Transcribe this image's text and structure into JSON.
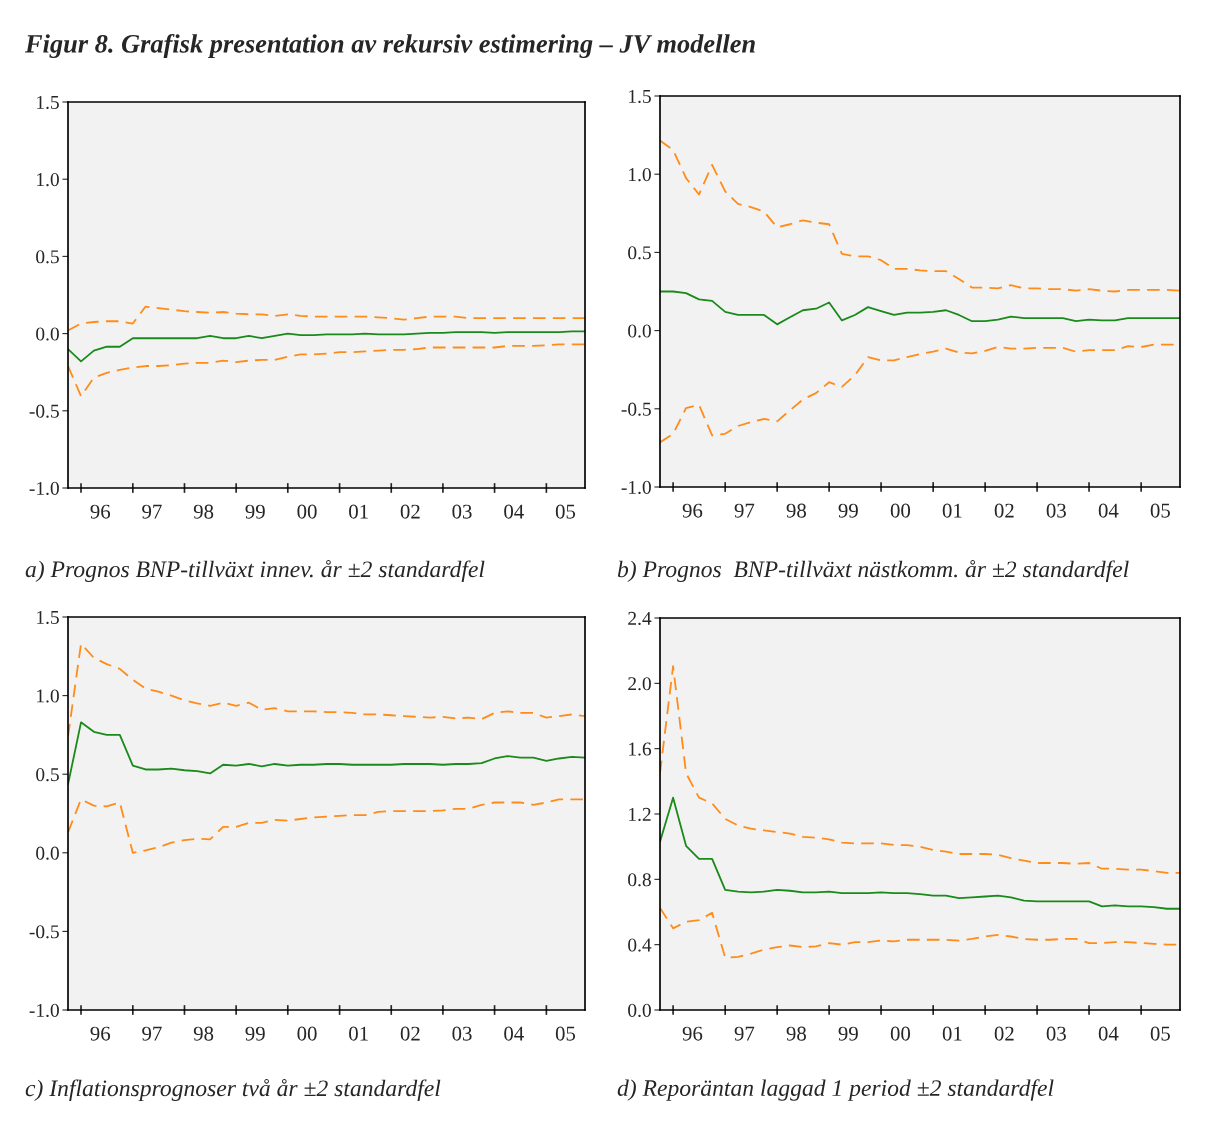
{
  "chart_data": [
    {
      "type": "line",
      "title": "Figur 8. Grafisk presentation av rekursiv estimering – JV modellen",
      "annotations": [
        "a) Prognos BNP-tillväxt innev. år ±2 standardfel"
      ],
      "x": [
        "1995-10",
        "1996-01",
        "1996-04",
        "1996-07",
        "1996-10",
        "1997-01",
        "1997-04",
        "1997-07",
        "1997-10",
        "1998-01",
        "1998-04",
        "1998-07",
        "1998-10",
        "1999-01",
        "1999-04",
        "1999-07",
        "1999-10",
        "2000-01",
        "2000-04",
        "2000-07",
        "2000-10",
        "2001-01",
        "2001-04",
        "2001-07",
        "2001-10",
        "2002-01",
        "2002-04",
        "2002-07",
        "2002-10",
        "2003-01",
        "2003-04",
        "2003-07",
        "2003-10",
        "2004-01",
        "2004-04",
        "2004-07",
        "2004-10",
        "2005-01",
        "2005-04",
        "2005-07",
        "2005-10"
      ],
      "series": [
        {
          "color": "#ff8c1a",
          "line_style": "dashed",
          "values": [
            0.02,
            0.065,
            0.075,
            0.08,
            0.08,
            0.065,
            0.175,
            0.165,
            0.155,
            0.145,
            0.14,
            0.135,
            0.14,
            0.13,
            0.125,
            0.125,
            0.115,
            0.125,
            0.115,
            0.11,
            0.11,
            0.11,
            0.11,
            0.11,
            0.105,
            0.1,
            0.09,
            0.1,
            0.11,
            0.11,
            0.11,
            0.1,
            0.1,
            0.1,
            0.1,
            0.1,
            0.1,
            0.1,
            0.1,
            0.1,
            0.1
          ]
        },
        {
          "color": "#1a8a1a",
          "line_style": "solid",
          "values": [
            -0.1,
            -0.18,
            -0.11,
            -0.085,
            -0.085,
            -0.03,
            -0.03,
            -0.03,
            -0.03,
            -0.03,
            -0.03,
            -0.015,
            -0.03,
            -0.03,
            -0.015,
            -0.03,
            -0.015,
            0.0,
            -0.01,
            -0.01,
            -0.005,
            -0.005,
            -0.005,
            0.0,
            -0.005,
            -0.005,
            -0.005,
            0.0,
            0.005,
            0.005,
            0.01,
            0.01,
            0.01,
            0.005,
            0.01,
            0.01,
            0.01,
            0.01,
            0.01,
            0.015,
            0.015
          ]
        },
        {
          "color": "#ff8c1a",
          "line_style": "dashed",
          "values": [
            -0.21,
            -0.405,
            -0.285,
            -0.255,
            -0.235,
            -0.22,
            -0.21,
            -0.21,
            -0.205,
            -0.195,
            -0.19,
            -0.19,
            -0.175,
            -0.185,
            -0.175,
            -0.17,
            -0.17,
            -0.15,
            -0.135,
            -0.135,
            -0.13,
            -0.12,
            -0.12,
            -0.115,
            -0.11,
            -0.105,
            -0.105,
            -0.1,
            -0.09,
            -0.09,
            -0.09,
            -0.09,
            -0.09,
            -0.09,
            -0.08,
            -0.08,
            -0.08,
            -0.075,
            -0.07,
            -0.07,
            -0.07
          ]
        }
      ],
      "xlim": [
        "1995-10",
        "2005-10"
      ],
      "xticks": [
        {
          "value": "1996-01",
          "label": null
        },
        {
          "value": "1997-01",
          "label": null
        },
        {
          "value": "1998-01",
          "label": null
        },
        {
          "value": "1999-01",
          "label": null
        },
        {
          "value": "2000-01",
          "label": null
        },
        {
          "value": "2001-01",
          "label": null
        },
        {
          "value": "2002-01",
          "label": null
        },
        {
          "value": "2003-01",
          "label": null
        },
        {
          "value": "2004-01",
          "label": null
        },
        {
          "value": "2005-01",
          "label": null
        },
        {
          "value": "1996-05-16",
          "label": "96"
        },
        {
          "value": "1997-05-16",
          "label": "97"
        },
        {
          "value": "1998-05-16",
          "label": "98"
        },
        {
          "value": "1999-05-16",
          "label": "99"
        },
        {
          "value": "2000-05-16",
          "label": "00"
        },
        {
          "value": "2001-05-16",
          "label": "01"
        },
        {
          "value": "2002-05-16",
          "label": "02"
        },
        {
          "value": "2003-05-16",
          "label": "03"
        },
        {
          "value": "2004-05-16",
          "label": "04"
        },
        {
          "value": "2005-05-16",
          "label": "05"
        }
      ],
      "ylim": [
        -1.0,
        1.5
      ],
      "yticks": [
        {
          "value": -1.0,
          "label": "-1.0"
        },
        {
          "value": -0.5,
          "label": "-0.5"
        },
        {
          "value": 0.0,
          "label": "0.0"
        },
        {
          "value": 0.5,
          "label": "0.5"
        },
        {
          "value": 1.0,
          "label": "1.0"
        },
        {
          "value": 1.5,
          "label": "1.5"
        }
      ],
      "grid": false
    },
    {
      "type": "line",
      "annotations": [
        "b) Prognos  BNP-tillväxt nästkomm. år ±2 standardfel"
      ],
      "x": [
        "1995-10",
        "1996-01",
        "1996-04",
        "1996-07",
        "1996-10",
        "1997-01",
        "1997-04",
        "1997-07",
        "1997-10",
        "1998-01",
        "1998-04",
        "1998-07",
        "1998-10",
        "1999-01",
        "1999-04",
        "1999-07",
        "1999-10",
        "2000-01",
        "2000-04",
        "2000-07",
        "2000-10",
        "2001-01",
        "2001-04",
        "2001-07",
        "2001-10",
        "2002-01",
        "2002-04",
        "2002-07",
        "2002-10",
        "2003-01",
        "2003-04",
        "2003-07",
        "2003-10",
        "2004-01",
        "2004-04",
        "2004-07",
        "2004-10",
        "2005-01",
        "2005-04",
        "2005-07",
        "2005-10"
      ],
      "series": [
        {
          "color": "#ff8c1a",
          "line_style": "dashed",
          "values": [
            1.215,
            1.155,
            0.975,
            0.87,
            1.06,
            0.89,
            0.81,
            0.79,
            0.76,
            0.66,
            0.68,
            0.705,
            0.69,
            0.68,
            0.49,
            0.475,
            0.475,
            0.45,
            0.395,
            0.395,
            0.385,
            0.38,
            0.38,
            0.33,
            0.275,
            0.275,
            0.27,
            0.29,
            0.27,
            0.27,
            0.265,
            0.265,
            0.255,
            0.265,
            0.255,
            0.25,
            0.26,
            0.26,
            0.26,
            0.26,
            0.255
          ]
        },
        {
          "color": "#1a8a1a",
          "line_style": "solid",
          "values": [
            0.25,
            0.25,
            0.24,
            0.2,
            0.19,
            0.12,
            0.1,
            0.1,
            0.1,
            0.04,
            0.085,
            0.13,
            0.14,
            0.18,
            0.065,
            0.1,
            0.15,
            0.125,
            0.1,
            0.115,
            0.115,
            0.12,
            0.13,
            0.1,
            0.06,
            0.06,
            0.07,
            0.09,
            0.08,
            0.08,
            0.08,
            0.08,
            0.06,
            0.07,
            0.065,
            0.065,
            0.08,
            0.08,
            0.08,
            0.08,
            0.08
          ]
        },
        {
          "color": "#ff8c1a",
          "line_style": "dashed",
          "values": [
            -0.715,
            -0.66,
            -0.495,
            -0.475,
            -0.67,
            -0.66,
            -0.61,
            -0.585,
            -0.565,
            -0.58,
            -0.51,
            -0.44,
            -0.4,
            -0.33,
            -0.36,
            -0.285,
            -0.17,
            -0.19,
            -0.19,
            -0.17,
            -0.15,
            -0.135,
            -0.115,
            -0.14,
            -0.145,
            -0.13,
            -0.105,
            -0.115,
            -0.115,
            -0.11,
            -0.11,
            -0.11,
            -0.135,
            -0.125,
            -0.125,
            -0.125,
            -0.1,
            -0.105,
            -0.09,
            -0.09,
            -0.09
          ]
        }
      ],
      "xlim": [
        "1995-10",
        "2005-10"
      ],
      "xticks": [
        {
          "value": "1996-01",
          "label": null
        },
        {
          "value": "1997-01",
          "label": null
        },
        {
          "value": "1998-01",
          "label": null
        },
        {
          "value": "1999-01",
          "label": null
        },
        {
          "value": "2000-01",
          "label": null
        },
        {
          "value": "2001-01",
          "label": null
        },
        {
          "value": "2002-01",
          "label": null
        },
        {
          "value": "2003-01",
          "label": null
        },
        {
          "value": "2004-01",
          "label": null
        },
        {
          "value": "2005-01",
          "label": null
        },
        {
          "value": "1996-05-16",
          "label": "96"
        },
        {
          "value": "1997-05-16",
          "label": "97"
        },
        {
          "value": "1998-05-16",
          "label": "98"
        },
        {
          "value": "1999-05-16",
          "label": "99"
        },
        {
          "value": "2000-05-16",
          "label": "00"
        },
        {
          "value": "2001-05-16",
          "label": "01"
        },
        {
          "value": "2002-05-16",
          "label": "02"
        },
        {
          "value": "2003-05-16",
          "label": "03"
        },
        {
          "value": "2004-05-16",
          "label": "04"
        },
        {
          "value": "2005-05-16",
          "label": "05"
        }
      ],
      "ylim": [
        -1.0,
        1.5
      ],
      "yticks": [
        {
          "value": -1.0,
          "label": "-1.0"
        },
        {
          "value": -0.5,
          "label": "-0.5"
        },
        {
          "value": 0.0,
          "label": "0.0"
        },
        {
          "value": 0.5,
          "label": "0.5"
        },
        {
          "value": 1.0,
          "label": "1.0"
        },
        {
          "value": 1.5,
          "label": "1.5"
        }
      ],
      "grid": false
    },
    {
      "type": "line",
      "annotations": [
        "c) Inflationsprognoser två år ±2 standardfel"
      ],
      "x": [
        "1995-10",
        "1996-01",
        "1996-04",
        "1996-07",
        "1996-10",
        "1997-01",
        "1997-04",
        "1997-07",
        "1997-10",
        "1998-01",
        "1998-04",
        "1998-07",
        "1998-10",
        "1999-01",
        "1999-04",
        "1999-07",
        "1999-10",
        "2000-01",
        "2000-04",
        "2000-07",
        "2000-10",
        "2001-01",
        "2001-04",
        "2001-07",
        "2001-10",
        "2002-01",
        "2002-04",
        "2002-07",
        "2002-10",
        "2003-01",
        "2003-04",
        "2003-07",
        "2003-10",
        "2004-01",
        "2004-04",
        "2004-07",
        "2004-10",
        "2005-01",
        "2005-04",
        "2005-07",
        "2005-10"
      ],
      "series": [
        {
          "color": "#ff8c1a",
          "line_style": "dashed",
          "values": [
            0.74,
            1.33,
            1.24,
            1.2,
            1.17,
            1.1,
            1.045,
            1.025,
            1.0,
            0.97,
            0.95,
            0.935,
            0.955,
            0.935,
            0.955,
            0.91,
            0.92,
            0.9,
            0.9,
            0.9,
            0.895,
            0.895,
            0.89,
            0.88,
            0.88,
            0.875,
            0.87,
            0.865,
            0.86,
            0.865,
            0.855,
            0.86,
            0.85,
            0.89,
            0.9,
            0.89,
            0.89,
            0.86,
            0.87,
            0.88,
            0.87
          ]
        },
        {
          "color": "#1a8a1a",
          "line_style": "solid",
          "values": [
            0.435,
            0.83,
            0.77,
            0.75,
            0.75,
            0.555,
            0.53,
            0.53,
            0.535,
            0.525,
            0.52,
            0.505,
            0.56,
            0.555,
            0.565,
            0.55,
            0.565,
            0.555,
            0.56,
            0.56,
            0.565,
            0.565,
            0.56,
            0.56,
            0.56,
            0.56,
            0.565,
            0.565,
            0.565,
            0.56,
            0.565,
            0.565,
            0.57,
            0.6,
            0.615,
            0.605,
            0.605,
            0.585,
            0.6,
            0.61,
            0.605
          ]
        },
        {
          "color": "#ff8c1a",
          "line_style": "dashed",
          "values": [
            0.13,
            0.34,
            0.3,
            0.295,
            0.32,
            0.0,
            0.015,
            0.035,
            0.065,
            0.08,
            0.09,
            0.085,
            0.165,
            0.165,
            0.19,
            0.19,
            0.21,
            0.205,
            0.215,
            0.225,
            0.23,
            0.235,
            0.24,
            0.24,
            0.26,
            0.265,
            0.265,
            0.265,
            0.265,
            0.27,
            0.28,
            0.28,
            0.305,
            0.32,
            0.32,
            0.32,
            0.305,
            0.32,
            0.34,
            0.34,
            0.34
          ]
        }
      ],
      "xlim": [
        "1995-10",
        "2005-10"
      ],
      "xticks": [
        {
          "value": "1996-01",
          "label": null
        },
        {
          "value": "1997-01",
          "label": null
        },
        {
          "value": "1998-01",
          "label": null
        },
        {
          "value": "1999-01",
          "label": null
        },
        {
          "value": "2000-01",
          "label": null
        },
        {
          "value": "2001-01",
          "label": null
        },
        {
          "value": "2002-01",
          "label": null
        },
        {
          "value": "2003-01",
          "label": null
        },
        {
          "value": "2004-01",
          "label": null
        },
        {
          "value": "2005-01",
          "label": null
        },
        {
          "value": "1996-05-16",
          "label": "96"
        },
        {
          "value": "1997-05-16",
          "label": "97"
        },
        {
          "value": "1998-05-16",
          "label": "98"
        },
        {
          "value": "1999-05-16",
          "label": "99"
        },
        {
          "value": "2000-05-16",
          "label": "00"
        },
        {
          "value": "2001-05-16",
          "label": "01"
        },
        {
          "value": "2002-05-16",
          "label": "02"
        },
        {
          "value": "2003-05-16",
          "label": "03"
        },
        {
          "value": "2004-05-16",
          "label": "04"
        },
        {
          "value": "2005-05-16",
          "label": "05"
        }
      ],
      "ylim": [
        -1.0,
        1.5
      ],
      "yticks": [
        {
          "value": -1.0,
          "label": "-1.0"
        },
        {
          "value": -0.5,
          "label": "-0.5"
        },
        {
          "value": 0.0,
          "label": "0.0"
        },
        {
          "value": 0.5,
          "label": "0.5"
        },
        {
          "value": 1.0,
          "label": "1.0"
        },
        {
          "value": 1.5,
          "label": "1.5"
        }
      ],
      "grid": false
    },
    {
      "type": "line",
      "annotations": [
        "d) Reporäntan laggad 1 period ±2 standardfel"
      ],
      "x": [
        "1995-10",
        "1996-01",
        "1996-04",
        "1996-07",
        "1996-10",
        "1997-01",
        "1997-04",
        "1997-07",
        "1997-10",
        "1998-01",
        "1998-04",
        "1998-07",
        "1998-10",
        "1999-01",
        "1999-04",
        "1999-07",
        "1999-10",
        "2000-01",
        "2000-04",
        "2000-07",
        "2000-10",
        "2001-01",
        "2001-04",
        "2001-07",
        "2001-10",
        "2002-01",
        "2002-04",
        "2002-07",
        "2002-10",
        "2003-01",
        "2003-04",
        "2003-07",
        "2003-10",
        "2004-01",
        "2004-04",
        "2004-07",
        "2004-10",
        "2005-01",
        "2005-04",
        "2005-07",
        "2005-10"
      ],
      "series": [
        {
          "color": "#ff8c1a",
          "line_style": "dashed",
          "values": [
            1.45,
            2.105,
            1.45,
            1.3,
            1.265,
            1.17,
            1.13,
            1.11,
            1.1,
            1.09,
            1.08,
            1.06,
            1.055,
            1.045,
            1.025,
            1.02,
            1.02,
            1.02,
            1.01,
            1.01,
            1.0,
            0.98,
            0.97,
            0.955,
            0.955,
            0.955,
            0.95,
            0.93,
            0.915,
            0.9,
            0.9,
            0.9,
            0.895,
            0.9,
            0.865,
            0.865,
            0.86,
            0.86,
            0.85,
            0.84,
            0.84
          ]
        },
        {
          "color": "#1a8a1a",
          "line_style": "solid",
          "values": [
            1.03,
            1.3,
            1.005,
            0.925,
            0.925,
            0.735,
            0.725,
            0.72,
            0.725,
            0.735,
            0.73,
            0.72,
            0.72,
            0.725,
            0.715,
            0.715,
            0.715,
            0.72,
            0.715,
            0.715,
            0.71,
            0.7,
            0.7,
            0.685,
            0.69,
            0.695,
            0.7,
            0.69,
            0.67,
            0.665,
            0.665,
            0.665,
            0.665,
            0.665,
            0.635,
            0.64,
            0.635,
            0.635,
            0.63,
            0.62,
            0.62
          ]
        },
        {
          "color": "#ff8c1a",
          "line_style": "dashed",
          "values": [
            0.625,
            0.5,
            0.54,
            0.55,
            0.595,
            0.32,
            0.325,
            0.345,
            0.37,
            0.385,
            0.395,
            0.385,
            0.39,
            0.41,
            0.4,
            0.415,
            0.415,
            0.425,
            0.42,
            0.43,
            0.43,
            0.43,
            0.43,
            0.425,
            0.435,
            0.45,
            0.46,
            0.45,
            0.435,
            0.43,
            0.43,
            0.435,
            0.435,
            0.41,
            0.41,
            0.415,
            0.415,
            0.41,
            0.405,
            0.4,
            0.4
          ]
        }
      ],
      "xlim": [
        "1995-10",
        "2005-10"
      ],
      "xticks": [
        {
          "value": "1996-01",
          "label": null
        },
        {
          "value": "1997-01",
          "label": null
        },
        {
          "value": "1998-01",
          "label": null
        },
        {
          "value": "1999-01",
          "label": null
        },
        {
          "value": "2000-01",
          "label": null
        },
        {
          "value": "2001-01",
          "label": null
        },
        {
          "value": "2002-01",
          "label": null
        },
        {
          "value": "2003-01",
          "label": null
        },
        {
          "value": "2004-01",
          "label": null
        },
        {
          "value": "2005-01",
          "label": null
        },
        {
          "value": "1996-05-16",
          "label": "96"
        },
        {
          "value": "1997-05-16",
          "label": "97"
        },
        {
          "value": "1998-05-16",
          "label": "98"
        },
        {
          "value": "1999-05-16",
          "label": "99"
        },
        {
          "value": "2000-05-16",
          "label": "00"
        },
        {
          "value": "2001-05-16",
          "label": "01"
        },
        {
          "value": "2002-05-16",
          "label": "02"
        },
        {
          "value": "2003-05-16",
          "label": "03"
        },
        {
          "value": "2004-05-16",
          "label": "04"
        },
        {
          "value": "2005-05-16",
          "label": "05"
        }
      ],
      "ylim": [
        0.0,
        2.4
      ],
      "yticks": [
        {
          "value": 0.0,
          "label": "0.0"
        },
        {
          "value": 0.4,
          "label": "0.4"
        },
        {
          "value": 0.8,
          "label": "0.8"
        },
        {
          "value": 1.2,
          "label": "1.2"
        },
        {
          "value": 1.6,
          "label": "1.6"
        },
        {
          "value": 2.0,
          "label": "2.0"
        },
        {
          "value": 2.4,
          "label": "2.4"
        }
      ],
      "grid": false
    }
  ]
}
